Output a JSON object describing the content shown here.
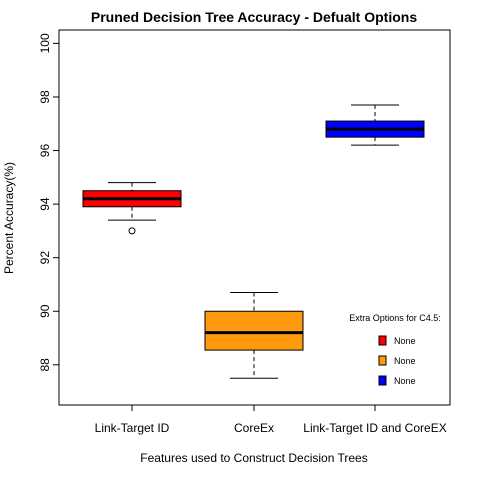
{
  "chart_data": {
    "type": "box",
    "title": "Pruned Decision Tree Accuracy - Defualt Options",
    "xlabel": "Features used to Construct Decision Trees",
    "ylabel": "Percent Accuracy(%)",
    "ylim": [
      86.5,
      100.5
    ],
    "yticks": [
      88,
      90,
      92,
      94,
      96,
      98,
      100
    ],
    "grid": false,
    "categories": [
      "Link-Target ID",
      "CoreEx",
      "Link-Target ID and CoreEX"
    ],
    "boxes": [
      {
        "category": "Link-Target ID",
        "whisker_low": 93.4,
        "q1": 93.9,
        "median": 94.2,
        "q3": 94.5,
        "whisker_high": 94.8,
        "outliers": [
          93.0
        ],
        "color": "#ff0000"
      },
      {
        "category": "CoreEx",
        "whisker_low": 87.5,
        "q1": 88.55,
        "median": 89.2,
        "q3": 90.0,
        "whisker_high": 90.7,
        "outliers": [],
        "color": "#ff9a0e"
      },
      {
        "category": "Link-Target ID and CoreEX",
        "whisker_low": 96.2,
        "q1": 96.5,
        "median": 96.8,
        "q3": 97.1,
        "whisker_high": 97.7,
        "outliers": [],
        "color": "#0000ff"
      }
    ],
    "legend": {
      "title": "Extra Options for C4.5:",
      "position": "bottom-right",
      "entries": [
        {
          "label": "None",
          "color": "#ff0000"
        },
        {
          "label": "None",
          "color": "#ff9a0e"
        },
        {
          "label": "None",
          "color": "#0000ff"
        }
      ]
    }
  }
}
